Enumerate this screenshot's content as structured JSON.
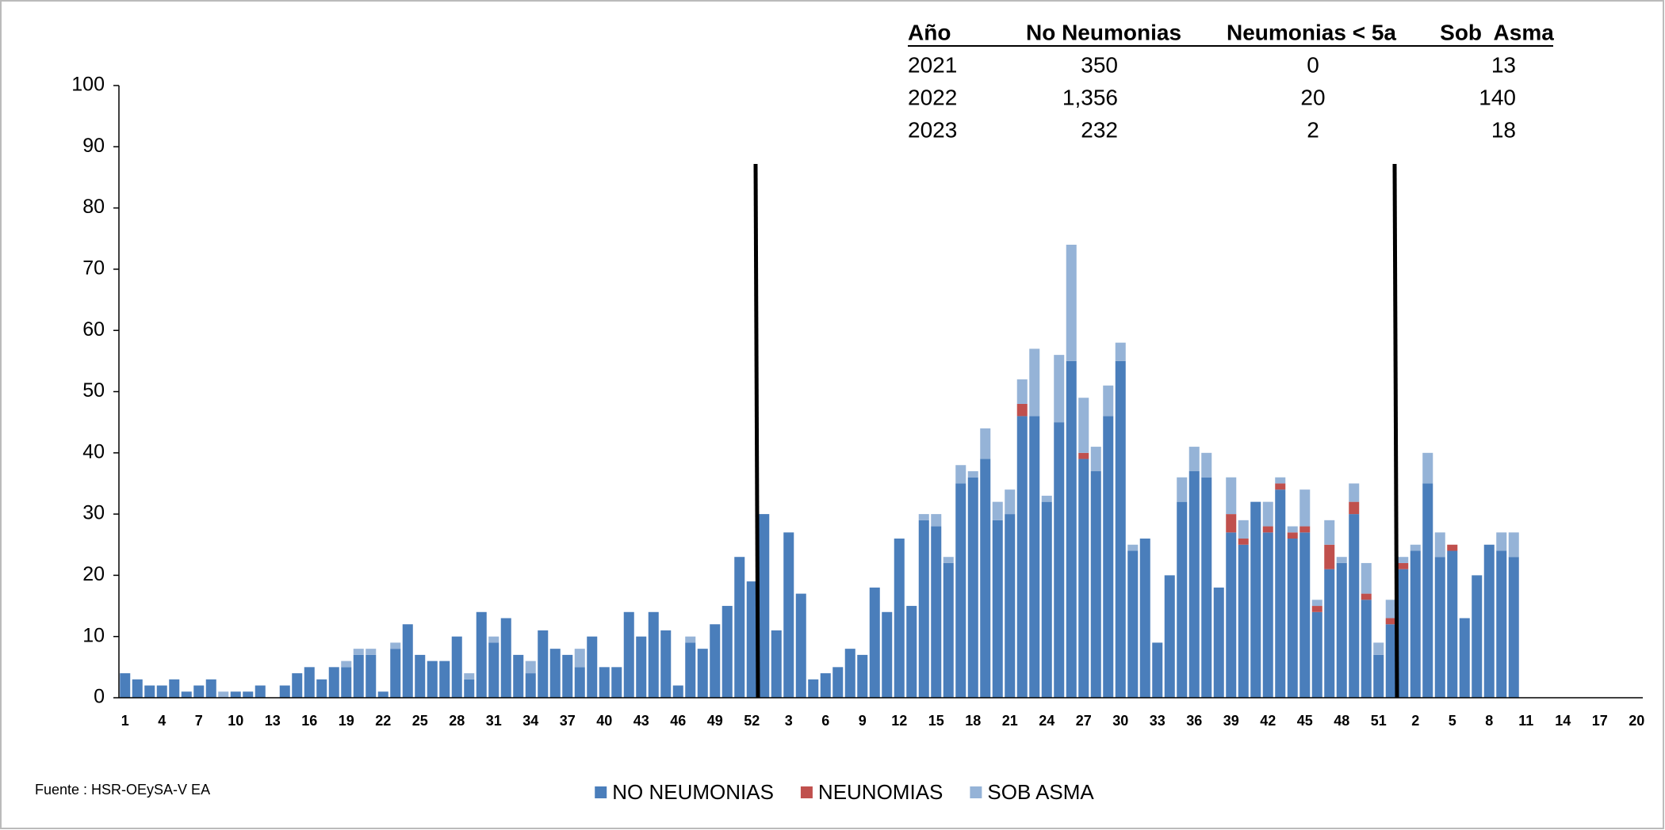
{
  "chart_data": {
    "type": "stacked_bar",
    "categories": [
      "1",
      null,
      null,
      "4",
      null,
      null,
      "7",
      null,
      null,
      "10",
      null,
      null,
      "13",
      null,
      null,
      "16",
      null,
      null,
      "19",
      null,
      null,
      "22",
      null,
      null,
      "25",
      null,
      null,
      "28",
      null,
      null,
      "31",
      null,
      null,
      "34",
      null,
      null,
      "37",
      null,
      null,
      "40",
      null,
      null,
      "43",
      null,
      null,
      "46",
      null,
      null,
      "49",
      null,
      null,
      "52",
      null,
      null,
      "3",
      null,
      null,
      "6",
      null,
      null,
      "9",
      null,
      null,
      "12",
      null,
      null,
      "15",
      null,
      null,
      "18",
      null,
      null,
      "21",
      null,
      null,
      "24",
      null,
      null,
      "27",
      null,
      null,
      "30",
      null,
      null,
      "33",
      null,
      null,
      "36",
      null,
      null,
      "39",
      null,
      null,
      "42",
      null,
      null,
      "45",
      null,
      null,
      "48",
      null,
      null,
      "51",
      null,
      null,
      "2",
      null,
      null,
      "5",
      null,
      null,
      "8",
      null,
      null,
      "11",
      null,
      null,
      "14",
      null,
      null,
      "17",
      null,
      null,
      "20"
    ],
    "series": [
      {
        "name": "NO NEUMONIAS",
        "color": "#4a7ebb",
        "values": [
          4,
          3,
          2,
          2,
          3,
          1,
          2,
          3,
          0,
          1,
          1,
          2,
          0,
          2,
          4,
          5,
          3,
          5,
          5,
          7,
          7,
          1,
          8,
          12,
          7,
          6,
          6,
          10,
          3,
          14,
          9,
          13,
          7,
          4,
          11,
          8,
          7,
          5,
          10,
          5,
          5,
          14,
          10,
          14,
          11,
          2,
          9,
          8,
          12,
          15,
          23,
          19,
          30,
          11,
          27,
          17,
          3,
          4,
          5,
          8,
          7,
          18,
          14,
          26,
          15,
          29,
          28,
          22,
          35,
          36,
          39,
          29,
          30,
          46,
          46,
          32,
          45,
          55,
          39,
          37,
          46,
          55,
          24,
          26,
          9,
          20,
          32,
          37,
          36,
          18,
          27,
          25,
          32,
          27,
          34,
          26,
          27,
          14,
          21,
          22,
          30,
          16,
          7,
          12,
          21,
          24,
          35,
          23,
          24,
          13,
          20,
          25,
          24,
          23,
          null,
          null,
          null,
          null,
          null,
          null,
          null,
          null,
          null,
          null
        ]
      },
      {
        "name": "NEUNOMIAS",
        "color": "#c0504d",
        "values": [
          0,
          0,
          0,
          0,
          0,
          0,
          0,
          0,
          0,
          0,
          0,
          0,
          0,
          0,
          0,
          0,
          0,
          0,
          0,
          0,
          0,
          0,
          0,
          0,
          0,
          0,
          0,
          0,
          0,
          0,
          0,
          0,
          0,
          0,
          0,
          0,
          0,
          0,
          0,
          0,
          0,
          0,
          0,
          0,
          0,
          0,
          0,
          0,
          0,
          0,
          0,
          0,
          0,
          0,
          0,
          0,
          0,
          0,
          0,
          0,
          0,
          0,
          0,
          0,
          0,
          0,
          0,
          0,
          0,
          0,
          0,
          0,
          0,
          2,
          0,
          0,
          0,
          0,
          1,
          0,
          0,
          0,
          0,
          0,
          0,
          0,
          0,
          0,
          0,
          0,
          3,
          1,
          0,
          1,
          1,
          1,
          1,
          1,
          4,
          0,
          2,
          1,
          0,
          1,
          1,
          0,
          0,
          0,
          1,
          0,
          0,
          0,
          0,
          0,
          null,
          null,
          null,
          null,
          null,
          null,
          null,
          null,
          null,
          null
        ]
      },
      {
        "name": "SOB ASMA",
        "color": "#95b3d7",
        "values": [
          0,
          0,
          0,
          0,
          0,
          0,
          0,
          0,
          1,
          0,
          0,
          0,
          0,
          0,
          0,
          0,
          0,
          0,
          1,
          1,
          1,
          0,
          1,
          0,
          0,
          0,
          0,
          0,
          1,
          0,
          1,
          0,
          0,
          2,
          0,
          0,
          0,
          3,
          0,
          0,
          0,
          0,
          0,
          0,
          0,
          0,
          1,
          0,
          0,
          0,
          0,
          0,
          0,
          0,
          0,
          0,
          0,
          0,
          0,
          0,
          0,
          0,
          0,
          0,
          0,
          1,
          2,
          1,
          3,
          1,
          5,
          3,
          4,
          4,
          11,
          1,
          11,
          19,
          9,
          4,
          5,
          3,
          1,
          0,
          0,
          0,
          4,
          4,
          4,
          0,
          6,
          3,
          0,
          4,
          1,
          1,
          6,
          1,
          4,
          1,
          3,
          5,
          2,
          3,
          1,
          1,
          5,
          4,
          0,
          0,
          0,
          0,
          3,
          4,
          null,
          null,
          null,
          null,
          null,
          null,
          null,
          null,
          null,
          null
        ]
      }
    ],
    "ylim": [
      0,
      100
    ],
    "yticks": [
      0,
      10,
      20,
      30,
      40,
      50,
      60,
      70,
      80,
      90,
      100
    ],
    "grid": false,
    "legend": "bottom"
  },
  "table": {
    "headers": [
      "Año",
      "No Neumonias",
      "Neumonias < 5a",
      "Sob  Asma"
    ],
    "rows": [
      [
        "2021",
        "350",
        "0",
        "13"
      ],
      [
        "2022",
        "1,356",
        "20",
        "140"
      ],
      [
        "2023",
        "232",
        "2",
        "18"
      ]
    ]
  },
  "footnote": "Fuente : HSR-OEySA-V EA"
}
